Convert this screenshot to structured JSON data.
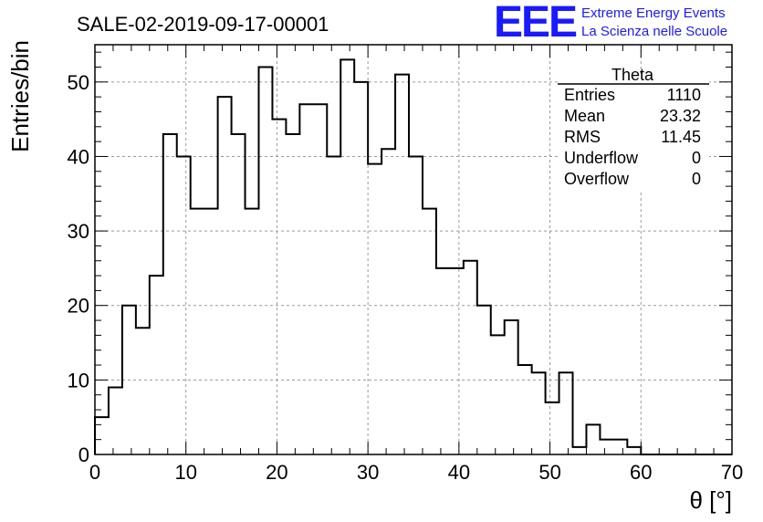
{
  "title": "SALE-02-2019-09-17-00001",
  "logo": {
    "letters": "EEE",
    "line1": "Extreme Energy Events",
    "line2": "La Scienza nelle Scuole",
    "color": "#1a1aff"
  },
  "stats": {
    "name": "Theta",
    "rows": [
      {
        "label": "Entries",
        "value": "1110"
      },
      {
        "label": "Mean",
        "value": "23.32"
      },
      {
        "label": "RMS",
        "value": "11.45"
      },
      {
        "label": "Underflow",
        "value": "0"
      },
      {
        "label": "Overflow",
        "value": "0"
      }
    ]
  },
  "chart_data": {
    "type": "histogram",
    "xlabel": "θ [°]",
    "ylabel": "Entries/bin",
    "xlim": [
      0,
      70
    ],
    "ylim": [
      0,
      55
    ],
    "xticks": [
      0,
      10,
      20,
      30,
      40,
      50,
      60,
      70
    ],
    "yticks": [
      0,
      10,
      20,
      30,
      40,
      50
    ],
    "grid": true,
    "bin_width": 1.5,
    "bin_edges_start": 0,
    "values": [
      5,
      9,
      20,
      17,
      24,
      43,
      40,
      33,
      33,
      48,
      43,
      33,
      52,
      45,
      43,
      47,
      47,
      40,
      53,
      50,
      39,
      41,
      51,
      40,
      33,
      25,
      25,
      26,
      20,
      16,
      18,
      12,
      11,
      7,
      11,
      1,
      4,
      2,
      2,
      1,
      0,
      0,
      0,
      0,
      0,
      0,
      0
    ]
  }
}
